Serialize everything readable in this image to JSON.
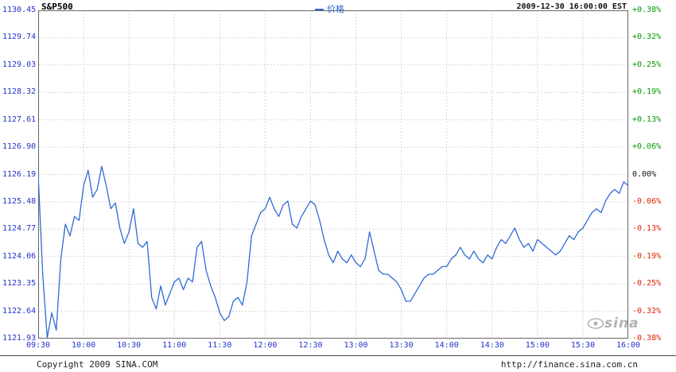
{
  "header": {
    "symbol": "S&P500",
    "legend_label": "价格",
    "timestamp": "2009-12-30 16:00:00 EST"
  },
  "axes": {
    "left_labels": [
      "1130.45",
      "1129.74",
      "1129.03",
      "1128.32",
      "1127.61",
      "1126.90",
      "1126.19",
      "1125.48",
      "1124.77",
      "1124.06",
      "1123.35",
      "1122.64",
      "1121.93"
    ],
    "right_labels": [
      "+0.38%",
      "+0.32%",
      "+0.25%",
      "+0.19%",
      "+0.13%",
      "+0.06%",
      "0.00%",
      "-0.06%",
      "-0.13%",
      "-0.19%",
      "-0.25%",
      "-0.32%",
      "-0.38%"
    ],
    "x_labels": [
      "09:30",
      "10:00",
      "10:30",
      "11:00",
      "11:30",
      "12:00",
      "12:30",
      "13:00",
      "13:30",
      "14:00",
      "14:30",
      "15:00",
      "15:30",
      "16:00"
    ]
  },
  "watermark": {
    "text": "sina"
  },
  "footer": {
    "copyright": "Copyright 2009 SINA.COM",
    "url": "http://finance.sina.com.cn"
  },
  "palette": {
    "line": "#2e6bd5",
    "axis_text": "#2233cc",
    "positive": "#009900",
    "negative": "#dd2200",
    "neutral": "#111111",
    "grid": "#d6d6d6",
    "frame": "#666666",
    "watermark": "#b3b3b3"
  },
  "chart_data": {
    "type": "line",
    "title": "S&P500 intraday price",
    "date": "2009-12-30",
    "session": "09:30-16:00 EST",
    "interval_minutes": 3,
    "ylim": [
      1121.93,
      1130.45
    ],
    "baseline_price": 1126.19,
    "pct_range": [
      "-0.38%",
      "+0.38%"
    ],
    "legend": [
      "价格"
    ],
    "grid": true,
    "x_tick_labels": [
      "09:30",
      "10:00",
      "10:30",
      "11:00",
      "11:30",
      "12:00",
      "12:30",
      "13:00",
      "13:30",
      "14:00",
      "14:30",
      "15:00",
      "15:30",
      "16:00"
    ],
    "y_tick_labels": [
      "1130.45",
      "1129.74",
      "1129.03",
      "1128.32",
      "1127.61",
      "1126.90",
      "1126.19",
      "1125.48",
      "1124.77",
      "1124.06",
      "1123.35",
      "1122.64",
      "1121.93"
    ],
    "values": [
      1126.19,
      1123.6,
      1121.95,
      1122.6,
      1122.15,
      1124.0,
      1124.9,
      1124.6,
      1125.1,
      1125.0,
      1125.9,
      1126.3,
      1125.6,
      1125.8,
      1126.4,
      1125.9,
      1125.3,
      1125.45,
      1124.8,
      1124.4,
      1124.7,
      1125.3,
      1124.4,
      1124.3,
      1124.45,
      1123.0,
      1122.7,
      1123.3,
      1122.8,
      1123.1,
      1123.4,
      1123.5,
      1123.2,
      1123.5,
      1123.4,
      1124.3,
      1124.45,
      1123.7,
      1123.3,
      1123.0,
      1122.6,
      1122.4,
      1122.5,
      1122.9,
      1123.0,
      1122.8,
      1123.4,
      1124.6,
      1124.9,
      1125.2,
      1125.3,
      1125.6,
      1125.3,
      1125.1,
      1125.4,
      1125.5,
      1124.9,
      1124.8,
      1125.1,
      1125.3,
      1125.5,
      1125.4,
      1125.0,
      1124.5,
      1124.1,
      1123.9,
      1124.2,
      1124.0,
      1123.9,
      1124.1,
      1123.9,
      1123.8,
      1124.0,
      1124.7,
      1124.2,
      1123.7,
      1123.6,
      1123.6,
      1123.5,
      1123.4,
      1123.2,
      1122.9,
      1122.9,
      1123.1,
      1123.3,
      1123.5,
      1123.6,
      1123.6,
      1123.7,
      1123.8,
      1123.8,
      1124.0,
      1124.1,
      1124.3,
      1124.1,
      1124.0,
      1124.2,
      1124.0,
      1123.9,
      1124.1,
      1124.0,
      1124.3,
      1124.5,
      1124.4,
      1124.6,
      1124.8,
      1124.5,
      1124.3,
      1124.4,
      1124.2,
      1124.5,
      1124.4,
      1124.3,
      1124.2,
      1124.1,
      1124.2,
      1124.4,
      1124.6,
      1124.5,
      1124.7,
      1124.8,
      1125.0,
      1125.2,
      1125.3,
      1125.2,
      1125.5,
      1125.7,
      1125.8,
      1125.7,
      1126.0,
      1125.9
    ]
  }
}
